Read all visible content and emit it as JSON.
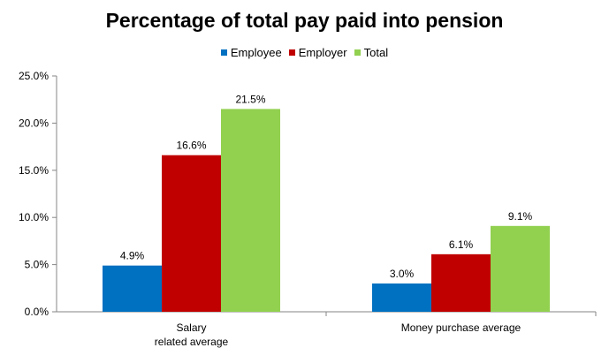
{
  "chart_data": {
    "type": "bar",
    "title": "Percentage of total pay paid into pension",
    "categories": [
      [
        "Salary",
        "related average"
      ],
      [
        "Money purchase average"
      ]
    ],
    "series": [
      {
        "name": "Employee",
        "values": [
          4.9,
          3.0
        ],
        "labels": [
          "4.9%",
          "3.0%"
        ],
        "color": "#0070C0"
      },
      {
        "name": "Employer",
        "values": [
          16.6,
          6.1
        ],
        "labels": [
          "16.6%",
          "6.1%"
        ],
        "color": "#C00000"
      },
      {
        "name": "Total",
        "values": [
          21.5,
          9.1
        ],
        "labels": [
          "21.5%",
          "9.1%"
        ],
        "color": "#92D050"
      }
    ],
    "yticks": [
      "0.0%",
      "5.0%",
      "10.0%",
      "15.0%",
      "20.0%",
      "25.0%"
    ],
    "ylim": [
      0,
      25
    ],
    "xlabel": "",
    "ylabel": "",
    "grid": false,
    "legend_position": "top"
  }
}
